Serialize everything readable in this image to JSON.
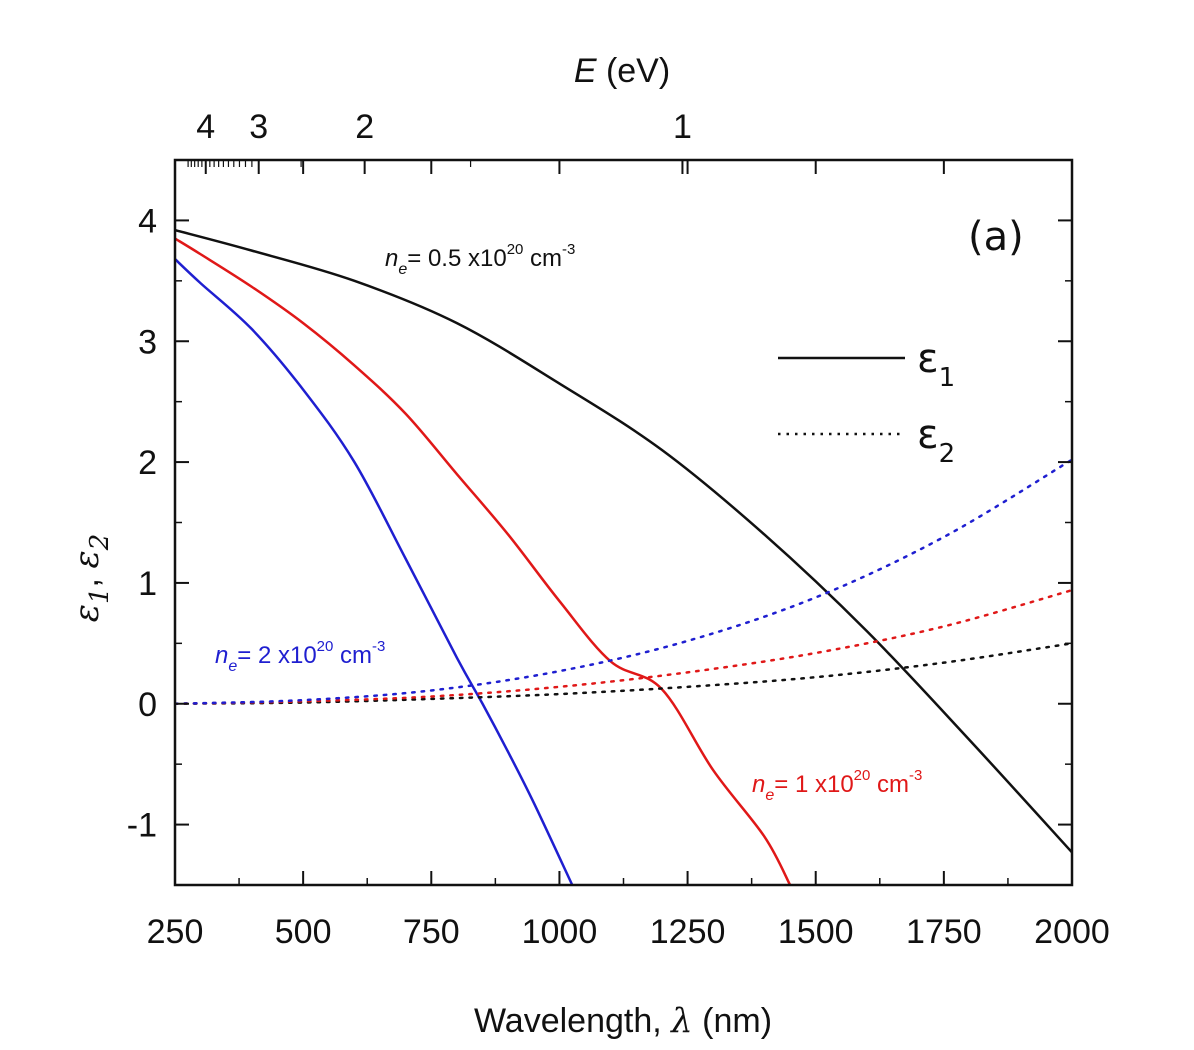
{
  "chart_data": {
    "type": "line",
    "x_axis": {
      "label_main": "Wavelength, ",
      "label_symbol": "λ",
      "label_unit": " (nm)",
      "range": [
        250,
        2000
      ],
      "ticks": [
        250,
        500,
        750,
        1000,
        1250,
        1500,
        1750,
        2000
      ],
      "tick_labels": [
        "250",
        "500",
        "750",
        "1000",
        "1250",
        "1500",
        "1750",
        "2000"
      ]
    },
    "top_axis": {
      "label_symbol": "E",
      "label_unit": " (eV)",
      "ticks_ev": [
        4,
        3,
        2,
        1
      ],
      "tick_labels": [
        "4",
        "3",
        "2",
        "1"
      ]
    },
    "y_axis": {
      "label_eps1": "ε",
      "label_eps1_sub": "1",
      "label_sep": ",  ",
      "label_eps2": "ε",
      "label_eps2_sub": "2",
      "range": [
        -1.5,
        4.5
      ],
      "ticks": [
        -1,
        0,
        1,
        2,
        3,
        4
      ],
      "tick_labels": [
        "-1",
        "0",
        "1",
        "2",
        "3",
        "4"
      ]
    },
    "panel_label": "(a)",
    "legend": {
      "position": "top-right",
      "items": [
        {
          "symbol": "ε",
          "sub": "1",
          "style": "solid"
        },
        {
          "symbol": "ε",
          "sub": "2",
          "style": "dotted"
        }
      ]
    },
    "annotations": [
      {
        "n": "n",
        "n_sub": "e",
        "text": "= 0.5 x10",
        "sup": "20",
        "unit": " cm",
        "unit_sup": "-3",
        "color": "#111111"
      },
      {
        "n": "n",
        "n_sub": "e",
        "text": "= 2 x10",
        "sup": "20",
        "unit": " cm",
        "unit_sup": "-3",
        "color": "#1f1fd0"
      },
      {
        "n": "n",
        "n_sub": "e",
        "text": "= 1 x10",
        "sup": "20",
        "unit": " cm",
        "unit_sup": "-3",
        "color": "#e01818"
      }
    ],
    "series": [
      {
        "quantity": "eps1",
        "style": "solid",
        "color": "#111111",
        "x": [
          250,
          400,
          600,
          800,
          1000,
          1200,
          1400,
          1600,
          1800,
          2000
        ],
        "y": [
          3.92,
          3.75,
          3.5,
          3.15,
          2.65,
          2.1,
          1.4,
          0.6,
          -0.3,
          -1.23
        ]
      },
      {
        "quantity": "eps1",
        "style": "solid",
        "color": "#e01818",
        "x": [
          250,
          300,
          400,
          500,
          600,
          700,
          800,
          900,
          1000,
          1100,
          1200,
          1300,
          1400,
          1450
        ],
        "y": [
          3.85,
          3.72,
          3.45,
          3.15,
          2.8,
          2.4,
          1.9,
          1.4,
          0.85,
          0.35,
          0.12,
          -0.55,
          -1.1,
          -1.5
        ]
      },
      {
        "quantity": "eps1",
        "style": "solid",
        "color": "#1f1fd0",
        "x": [
          250,
          300,
          400,
          500,
          600,
          700,
          800,
          850,
          900,
          950,
          1025
        ],
        "y": [
          3.68,
          3.48,
          3.1,
          2.6,
          2.0,
          1.2,
          0.38,
          0.0,
          -0.4,
          -0.82,
          -1.5
        ]
      },
      {
        "quantity": "eps2",
        "style": "dotted",
        "color": "#111111",
        "x": [
          250,
          500,
          750,
          1000,
          1250,
          1500,
          1750,
          2000
        ],
        "y": [
          0.0,
          0.01,
          0.04,
          0.08,
          0.14,
          0.22,
          0.34,
          0.5
        ]
      },
      {
        "quantity": "eps2",
        "style": "dotted",
        "color": "#e01818",
        "x": [
          250,
          500,
          750,
          1000,
          1250,
          1500,
          1750,
          2000
        ],
        "y": [
          0.0,
          0.02,
          0.06,
          0.14,
          0.26,
          0.42,
          0.64,
          0.94
        ]
      },
      {
        "quantity": "eps2",
        "style": "dotted",
        "color": "#1f1fd0",
        "x": [
          250,
          500,
          750,
          1000,
          1250,
          1500,
          1750,
          2000
        ],
        "y": [
          0.0,
          0.03,
          0.11,
          0.27,
          0.52,
          0.88,
          1.38,
          2.02
        ]
      }
    ]
  }
}
